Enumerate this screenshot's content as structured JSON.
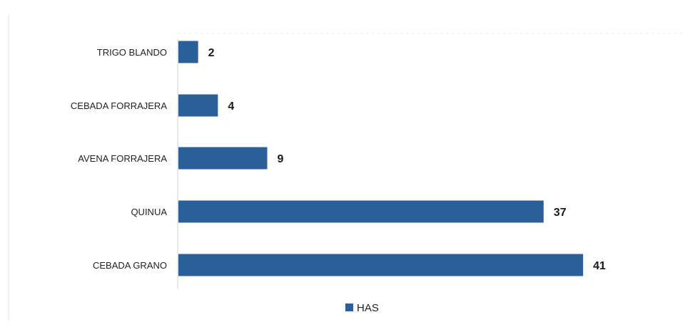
{
  "chart_data": {
    "type": "bar",
    "orientation": "horizontal",
    "categories": [
      "TRIGO BLANDO",
      "CEBADA FORRAJERA",
      "AVENA FORRAJERA",
      "QUINUA",
      "CEBADA GRANO"
    ],
    "series": [
      {
        "name": "HAS",
        "values": [
          2,
          4,
          9,
          37,
          41
        ],
        "color": "#2a5f97"
      }
    ],
    "data_labels": true,
    "xlim": [
      0,
      42
    ],
    "title": "",
    "xlabel": "",
    "ylabel": "",
    "grid": false,
    "legend": "bottom-center"
  }
}
